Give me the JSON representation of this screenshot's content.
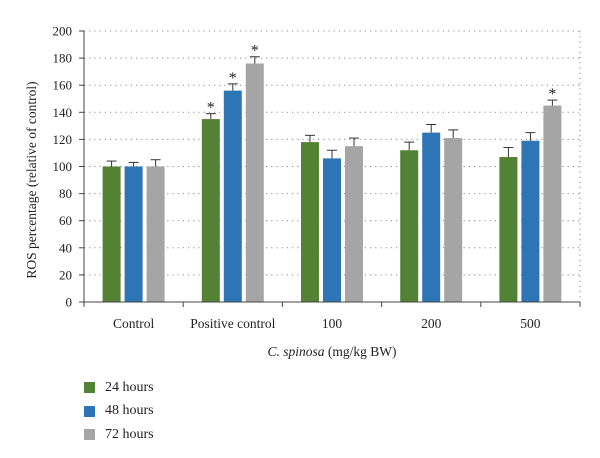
{
  "chart_data": {
    "type": "bar",
    "categories": [
      "Control",
      "Positive control",
      "100",
      "200",
      "500"
    ],
    "series": [
      {
        "name": "24 hours",
        "color": "#548235",
        "values": [
          100,
          135,
          118,
          112,
          107
        ],
        "errors": [
          4,
          4,
          5,
          6,
          7
        ],
        "significant": [
          false,
          true,
          false,
          false,
          false
        ]
      },
      {
        "name": "48 hours",
        "color": "#2e75b6",
        "values": [
          100,
          156,
          106,
          125,
          119
        ],
        "errors": [
          3,
          5,
          6,
          6,
          6
        ],
        "significant": [
          false,
          true,
          false,
          false,
          false
        ]
      },
      {
        "name": "72 hours",
        "color": "#a5a5a5",
        "values": [
          100,
          176,
          115,
          121,
          145
        ],
        "errors": [
          5,
          5,
          6,
          6,
          4
        ],
        "significant": [
          false,
          true,
          false,
          false,
          true
        ]
      }
    ],
    "ylabel": "ROS percentage (relative of control)",
    "xlabel_italic": "C. spinosa",
    "xlabel_rest": " (mg/kg BW)",
    "ylim": [
      0,
      200
    ],
    "yticks": [
      0,
      20,
      40,
      60,
      80,
      100,
      120,
      140,
      160,
      180,
      200
    ],
    "significance_marker": "*",
    "grid": true,
    "legend_position": "bottom-left"
  }
}
